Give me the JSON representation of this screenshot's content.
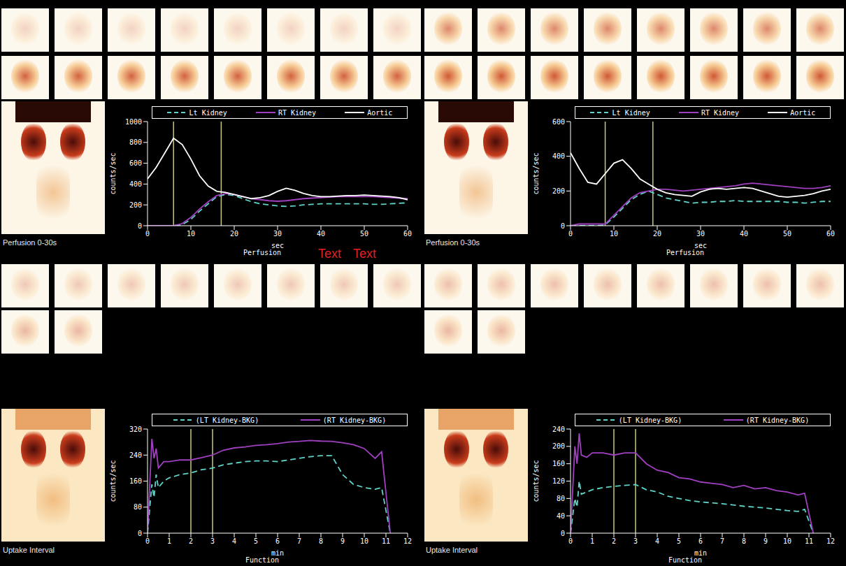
{
  "chart_data": [
    {
      "type": "line",
      "title": "Perfusion",
      "xlabel": "sec",
      "ylabel": "counts/sec",
      "image_caption": "Perfusion 0-30s",
      "annotations": [
        "Text",
        "Text"
      ],
      "xlim": [
        0,
        60
      ],
      "xticks": [
        0,
        10,
        20,
        30,
        40,
        50,
        60
      ],
      "ylim": [
        0,
        1000
      ],
      "yticks": [
        0,
        200,
        400,
        600,
        800,
        1000
      ],
      "interval_lines": [
        6,
        17
      ],
      "x": [
        0,
        2,
        4,
        6,
        8,
        10,
        12,
        14,
        16,
        18,
        20,
        22,
        24,
        26,
        28,
        30,
        32,
        34,
        36,
        38,
        40,
        42,
        44,
        46,
        48,
        50,
        52,
        54,
        56,
        58,
        60
      ],
      "series": [
        {
          "name": "Lt Kidney",
          "color": "#5fd3c8",
          "line_style": "dashed",
          "values": [
            0,
            0,
            0,
            0,
            10,
            60,
            140,
            210,
            280,
            300,
            290,
            260,
            230,
            210,
            200,
            190,
            185,
            190,
            200,
            205,
            210,
            210,
            210,
            210,
            210,
            210,
            205,
            205,
            210,
            215,
            220
          ]
        },
        {
          "name": "RT Kidney",
          "color": "#a040c0",
          "line_style": "solid",
          "values": [
            0,
            0,
            0,
            0,
            20,
            80,
            160,
            230,
            290,
            310,
            300,
            280,
            260,
            250,
            240,
            235,
            240,
            250,
            260,
            265,
            270,
            275,
            280,
            280,
            280,
            280,
            280,
            275,
            270,
            265,
            260
          ]
        },
        {
          "name": "Aortic",
          "color": "#ffffff",
          "line_style": "solid",
          "values": [
            450,
            560,
            700,
            840,
            780,
            640,
            480,
            380,
            330,
            320,
            300,
            280,
            260,
            270,
            290,
            330,
            360,
            340,
            310,
            290,
            280,
            280,
            285,
            290,
            290,
            295,
            290,
            285,
            280,
            270,
            250
          ]
        }
      ]
    },
    {
      "type": "line",
      "title": "Perfusion",
      "xlabel": "sec",
      "ylabel": "counts/sec",
      "image_caption": "Perfusion 0-30s",
      "xlim": [
        0,
        60
      ],
      "xticks": [
        0,
        10,
        20,
        30,
        40,
        50,
        60
      ],
      "ylim": [
        0,
        600
      ],
      "yticks": [
        0,
        200,
        400,
        600
      ],
      "interval_lines": [
        8,
        19
      ],
      "x": [
        0,
        2,
        4,
        6,
        8,
        10,
        12,
        14,
        16,
        18,
        20,
        22,
        24,
        26,
        28,
        30,
        32,
        34,
        36,
        38,
        40,
        42,
        44,
        46,
        48,
        50,
        52,
        54,
        56,
        58,
        60
      ],
      "series": [
        {
          "name": "Lt Kidney",
          "color": "#5fd3c8",
          "line_style": "dashed",
          "values": [
            0,
            0,
            0,
            0,
            5,
            50,
            100,
            150,
            180,
            200,
            180,
            160,
            150,
            140,
            130,
            135,
            135,
            140,
            140,
            145,
            140,
            140,
            140,
            140,
            140,
            135,
            135,
            130,
            135,
            140,
            140
          ]
        },
        {
          "name": "RT Kidney",
          "color": "#a040c0",
          "line_style": "solid",
          "values": [
            0,
            10,
            10,
            10,
            10,
            60,
            110,
            160,
            190,
            200,
            210,
            210,
            205,
            200,
            205,
            210,
            215,
            220,
            225,
            230,
            240,
            245,
            240,
            235,
            230,
            225,
            220,
            215,
            215,
            220,
            230
          ]
        },
        {
          "name": "Aortic",
          "color": "#ffffff",
          "line_style": "solid",
          "values": [
            420,
            330,
            250,
            240,
            300,
            360,
            380,
            330,
            270,
            240,
            210,
            190,
            180,
            175,
            170,
            195,
            210,
            215,
            210,
            215,
            220,
            215,
            200,
            185,
            170,
            165,
            170,
            175,
            185,
            200,
            210
          ]
        }
      ]
    },
    {
      "type": "line",
      "title": "Function",
      "xlabel": "min",
      "ylabel": "counts/sec",
      "image_caption": "Uptake Interval",
      "xlim": [
        0,
        12
      ],
      "xticks": [
        0,
        1,
        2,
        3,
        4,
        5,
        6,
        7,
        8,
        9,
        10,
        11,
        12
      ],
      "ylim": [
        0,
        320
      ],
      "yticks": [
        0,
        80,
        160,
        240,
        320
      ],
      "interval_lines": [
        2,
        3
      ],
      "x": [
        0,
        0.2,
        0.3,
        0.4,
        0.5,
        0.75,
        1,
        1.5,
        2,
        2.5,
        3,
        3.5,
        4,
        4.5,
        5,
        5.5,
        6,
        6.5,
        7,
        7.5,
        8,
        8.5,
        9,
        9.5,
        10,
        10.5,
        10.8,
        11.2
      ],
      "series": [
        {
          "name": "(LT Kidney-BKG)",
          "color": "#5fd3c8",
          "line_style": "dashed",
          "values": [
            0,
            150,
            110,
            180,
            140,
            160,
            170,
            180,
            185,
            195,
            200,
            210,
            215,
            220,
            222,
            222,
            220,
            225,
            230,
            235,
            238,
            238,
            180,
            150,
            140,
            135,
            140,
            0
          ]
        },
        {
          "name": "(RT Kidney-BKG)",
          "color": "#a040c0",
          "line_style": "solid",
          "values": [
            0,
            290,
            230,
            260,
            200,
            220,
            220,
            225,
            225,
            232,
            240,
            255,
            262,
            265,
            270,
            272,
            275,
            280,
            282,
            285,
            283,
            282,
            278,
            272,
            260,
            230,
            250,
            0
          ]
        }
      ]
    },
    {
      "type": "line",
      "title": "Function",
      "xlabel": "min",
      "ylabel": "counts/sec",
      "image_caption": "Uptake Interval",
      "xlim": [
        0,
        12
      ],
      "xticks": [
        0,
        1,
        2,
        3,
        4,
        5,
        6,
        7,
        8,
        9,
        10,
        11,
        12
      ],
      "ylim": [
        0,
        240
      ],
      "yticks": [
        0,
        40,
        80,
        120,
        160,
        200,
        240
      ],
      "interval_lines": [
        2,
        3
      ],
      "x": [
        0,
        0.2,
        0.3,
        0.4,
        0.5,
        0.75,
        1,
        1.5,
        2,
        2.5,
        3,
        3.5,
        4,
        4.5,
        5,
        5.5,
        6,
        6.5,
        7,
        7.5,
        8,
        8.5,
        9,
        9.5,
        10,
        10.5,
        10.8,
        11.2
      ],
      "series": [
        {
          "name": "(LT Kidney-BKG)",
          "color": "#5fd3c8",
          "line_style": "dashed",
          "values": [
            0,
            80,
            60,
            120,
            90,
            95,
            100,
            105,
            108,
            110,
            112,
            100,
            95,
            85,
            80,
            75,
            72,
            70,
            68,
            65,
            62,
            60,
            58,
            55,
            52,
            50,
            55,
            0
          ]
        },
        {
          "name": "(RT Kidney-BKG)",
          "color": "#a040c0",
          "line_style": "solid",
          "values": [
            0,
            200,
            160,
            230,
            180,
            175,
            185,
            185,
            180,
            185,
            185,
            160,
            145,
            140,
            128,
            125,
            118,
            115,
            112,
            105,
            110,
            102,
            105,
            98,
            95,
            88,
            92,
            0
          ]
        }
      ]
    }
  ]
}
